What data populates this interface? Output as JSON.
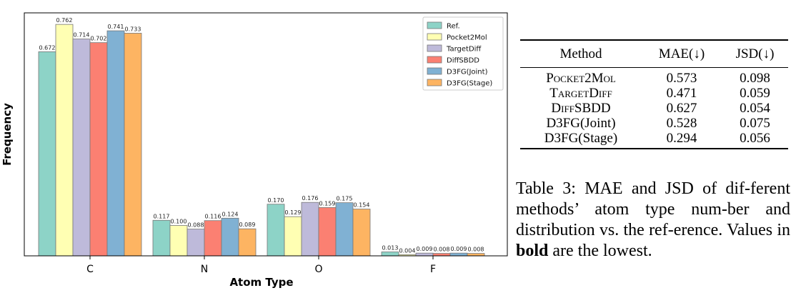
{
  "chart_data": {
    "type": "bar",
    "xlabel": "Atom Type",
    "ylabel": "Frequency",
    "categories": [
      "C",
      "N",
      "O",
      "F"
    ],
    "ylim": [
      0,
      0.8
    ],
    "legend_position": "top-right",
    "grid": false,
    "series": [
      {
        "name": "Ref.",
        "color": "#8dd3c7",
        "values": [
          0.672,
          0.117,
          0.17,
          0.013
        ],
        "labels": [
          "0.672",
          "0.117",
          "0.170",
          "0.013"
        ]
      },
      {
        "name": "Pocket2Mol",
        "color": "#ffffb3",
        "values": [
          0.762,
          0.1,
          0.129,
          0.004
        ],
        "labels": [
          "0.762",
          "0.100",
          "0.129",
          "0.004"
        ]
      },
      {
        "name": "TargetDiff",
        "color": "#bebada",
        "values": [
          0.714,
          0.088,
          0.176,
          0.009
        ],
        "labels": [
          "0.714",
          "0.088",
          "0.176",
          "0.009"
        ]
      },
      {
        "name": "DiffSBDD",
        "color": "#fb8072",
        "values": [
          0.702,
          0.116,
          0.159,
          0.008
        ],
        "labels": [
          "0.702",
          "0.116",
          "0.159",
          "0.008"
        ]
      },
      {
        "name": "D3FG(Joint)",
        "color": "#80b1d3",
        "values": [
          0.741,
          0.124,
          0.175,
          0.009
        ],
        "labels": [
          "0.741",
          "0.124",
          "0.175",
          "0.009"
        ]
      },
      {
        "name": "D3FG(Stage)",
        "color": "#fdb462",
        "values": [
          0.733,
          0.089,
          0.154,
          0.008
        ],
        "labels": [
          "0.733",
          "0.089",
          "0.154",
          "0.008"
        ]
      }
    ]
  },
  "table": {
    "headers": {
      "method": "Method",
      "mae": "MAE(↓)",
      "jsd": "JSD(↓)"
    },
    "rows": [
      {
        "method": "Pocket2Mol",
        "mae": "0.573",
        "jsd": "0.098"
      },
      {
        "method": "TargetDiff",
        "mae": "0.471",
        "jsd": "0.059"
      },
      {
        "method": "DiffSBDD",
        "mae": "0.627",
        "jsd": "0.054"
      },
      {
        "method": "D3FG(Joint)",
        "mae": "0.528",
        "jsd": "0.075"
      },
      {
        "method": "D3FG(Stage)",
        "mae": "0.294",
        "jsd": "0.056"
      }
    ]
  },
  "caption": {
    "label": "Table 3:",
    "text_before": "MAE and JSD of dif-ferent methods’ atom type num-ber and distribution vs. the ref-erence. Values in",
    "bold_word": "bold",
    "text_after": "are the lowest."
  }
}
